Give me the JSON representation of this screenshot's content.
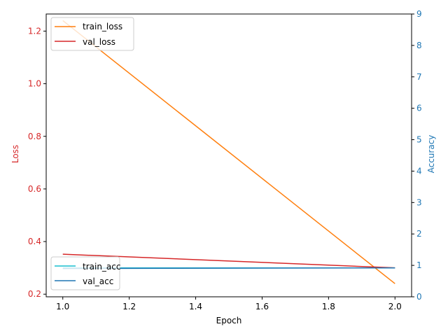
{
  "chart_data": {
    "type": "line",
    "title": "",
    "xlabel": "Epoch",
    "x_ticks": [
      "1.0",
      "1.2",
      "1.4",
      "1.6",
      "1.8",
      "2.0"
    ],
    "xlim": [
      0.95,
      2.05
    ],
    "left_axis": {
      "label": "Loss",
      "color": "#d62728",
      "ylim": [
        0.19,
        1.265
      ],
      "ticks": [
        "0.2",
        "0.4",
        "0.6",
        "0.8",
        "1.0",
        "1.2"
      ],
      "tick_values": [
        0.2,
        0.4,
        0.6,
        0.8,
        1.0,
        1.2
      ],
      "series": [
        {
          "name": "train_loss",
          "color": "#ff7f0e",
          "x": [
            1.0,
            2.0
          ],
          "y": [
            1.24,
            0.24
          ]
        },
        {
          "name": "val_loss",
          "color": "#d62728",
          "x": [
            1.0,
            2.0
          ],
          "y": [
            0.352,
            0.3
          ]
        }
      ],
      "legend_position": "upper left"
    },
    "right_axis": {
      "label": "Accuracy",
      "color": "#1f77b4",
      "ylim": [
        0,
        9
      ],
      "ticks": [
        "0",
        "1",
        "2",
        "3",
        "4",
        "5",
        "6",
        "7",
        "8",
        "9"
      ],
      "tick_values": [
        0,
        1,
        2,
        3,
        4,
        5,
        6,
        7,
        8,
        9
      ],
      "series": [
        {
          "name": "train_acc",
          "color": "#17becf",
          "x": [
            1.0,
            2.0
          ],
          "y": [
            0.92,
            0.92
          ]
        },
        {
          "name": "val_acc",
          "color": "#1f77b4",
          "x": [
            1.0,
            2.0
          ],
          "y": [
            0.9,
            0.92
          ]
        }
      ],
      "legend_position": "lower left"
    },
    "grid": false
  }
}
